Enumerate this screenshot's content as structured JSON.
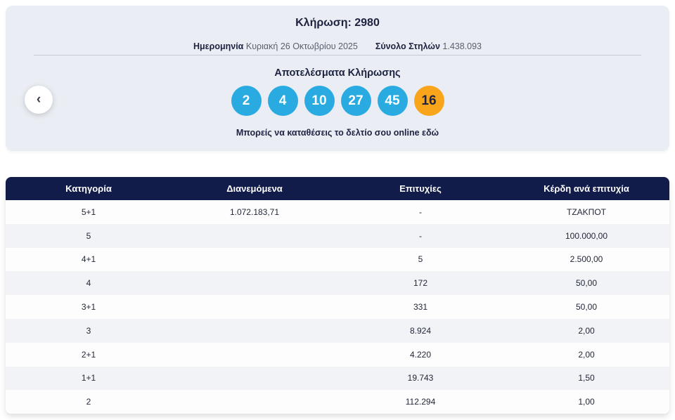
{
  "colors": {
    "main_ball_blue": "#29abe2",
    "joker_ball_orange": "#f9a51b",
    "header_navy": "#121c4a",
    "card_background": "#eaedf3"
  },
  "draw_card": {
    "title": "Κλήρωση: 2980",
    "meta": {
      "date_label": "Ημερομηνία",
      "date_value": "Κυριακή 26 Οκτωβρίου 2025",
      "columns_label": "Σύνολο Στηλών",
      "columns_value": "1.438.093"
    },
    "results_heading": "Αποτελέσματα Κλήρωσης",
    "numbers": [
      {
        "value": "2",
        "type": "main"
      },
      {
        "value": "4",
        "type": "main"
      },
      {
        "value": "10",
        "type": "main"
      },
      {
        "value": "27",
        "type": "main"
      },
      {
        "value": "45",
        "type": "main"
      },
      {
        "value": "16",
        "type": "joker"
      }
    ],
    "cta_text": "Μπορείς να καταθέσεις το δελτίο σου online εδώ",
    "prev_icon": "‹"
  },
  "table": {
    "headers": [
      "Κατηγορία",
      "Διανεμόμενα",
      "Επιτυχίες",
      "Κέρδη ανά επιτυχία"
    ],
    "rows": [
      [
        "5+1",
        "1.072.183,71",
        "-",
        "ΤΖΑΚΠΟΤ"
      ],
      [
        "5",
        "",
        "-",
        "100.000,00"
      ],
      [
        "4+1",
        "",
        "5",
        "2.500,00"
      ],
      [
        "4",
        "",
        "172",
        "50,00"
      ],
      [
        "3+1",
        "",
        "331",
        "50,00"
      ],
      [
        "3",
        "",
        "8.924",
        "2,00"
      ],
      [
        "2+1",
        "",
        "4.220",
        "2,00"
      ],
      [
        "1+1",
        "",
        "19.743",
        "1,50"
      ],
      [
        "2",
        "",
        "112.294",
        "1,00"
      ]
    ]
  }
}
